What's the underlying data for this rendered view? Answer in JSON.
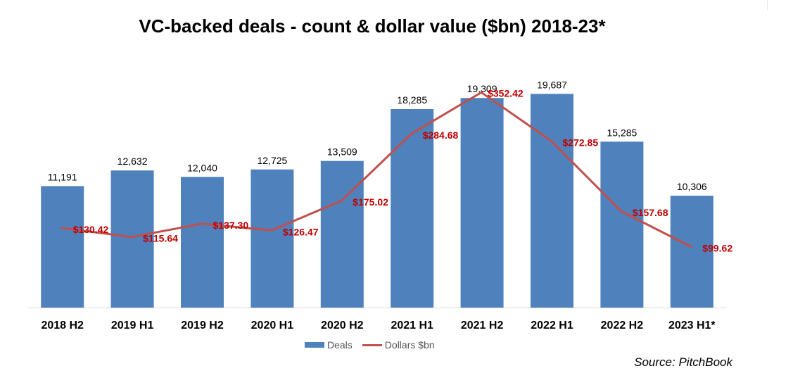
{
  "chart_data": {
    "type": "bar",
    "title": "VC-backed deals - count & dollar value ($bn) 2018-23*",
    "categories": [
      "2018 H2",
      "2019 H1",
      "2019 H2",
      "2020 H1",
      "2020 H2",
      "2021 H1",
      "2021 H2",
      "2022 H1",
      "2022 H2",
      "2023 H1*"
    ],
    "series": [
      {
        "name": "Deals",
        "type": "bar",
        "values": [
          11191,
          12632,
          12040,
          12725,
          13509,
          18285,
          19309,
          19687,
          15285,
          10306
        ],
        "labels": [
          "11,191",
          "12,632",
          "12,040",
          "12,725",
          "13,509",
          "18,285",
          "19,309",
          "19,687",
          "15,285",
          "10,306"
        ],
        "color": "#4f81bd"
      },
      {
        "name": "Dollars $bn",
        "type": "line",
        "values": [
          130.42,
          115.64,
          137.3,
          126.47,
          175.02,
          284.68,
          352.42,
          272.85,
          157.68,
          99.62
        ],
        "labels": [
          "$130.42",
          "$115.64",
          "$137.30",
          "$126.47",
          "$175.02",
          "$284.68",
          "$352.42",
          "$272.85",
          "$157.68",
          "$99.62"
        ],
        "color": "#c0504d",
        "label_color": "#c00000"
      }
    ],
    "ylim_bars": [
      0,
      22500
    ],
    "ylim_line": [
      0,
      400
    ],
    "grid": false,
    "legend_position": "bottom"
  },
  "legend": {
    "deals_label": "Deals",
    "dollars_label": "Dollars $bn"
  },
  "source": "Source: PitchBook"
}
